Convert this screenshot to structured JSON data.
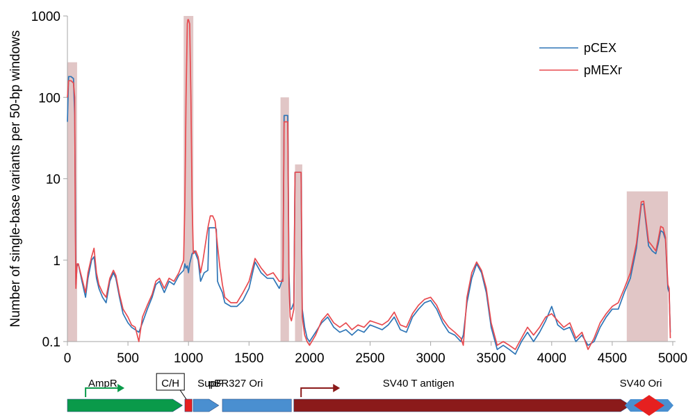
{
  "chart_data": {
    "type": "line",
    "title": "",
    "xlabel": "",
    "ylabel": "Number of single-base variants per 50-bp windows",
    "xlim": [
      0,
      5000
    ],
    "ylim": [
      0.1,
      1000
    ],
    "yscale": "log",
    "grid": false,
    "legend_placement": "top-right",
    "x_ticks": [
      "0",
      "500",
      "1000",
      "1500",
      "2000",
      "2500",
      "3000",
      "3500",
      "4000",
      "4500",
      "5000"
    ],
    "y_ticks": [
      "0.1",
      "1",
      "10",
      "100",
      "1000"
    ],
    "highlight_regions": [
      {
        "start": 0,
        "end": 80,
        "top": 270
      },
      {
        "start": 960,
        "end": 1040,
        "top": 1000
      },
      {
        "start": 1760,
        "end": 1830,
        "top": 100
      },
      {
        "start": 1880,
        "end": 1940,
        "top": 15
      },
      {
        "start": 4620,
        "end": 4960,
        "top": 7
      }
    ],
    "series": [
      {
        "name": "pCEX",
        "color": "#2e75b6",
        "x": [
          0,
          10,
          30,
          50,
          60,
          65,
          70,
          80,
          90,
          120,
          150,
          170,
          200,
          220,
          240,
          260,
          290,
          320,
          350,
          380,
          400,
          430,
          460,
          500,
          530,
          560,
          590,
          620,
          660,
          700,
          730,
          760,
          800,
          840,
          880,
          920,
          960,
          970,
          980,
          990,
          1000,
          1010,
          1030,
          1050,
          1080,
          1100,
          1130,
          1160,
          1170,
          1175,
          1180,
          1200,
          1220,
          1230,
          1240,
          1250,
          1280,
          1300,
          1350,
          1400,
          1450,
          1500,
          1550,
          1600,
          1650,
          1700,
          1750,
          1780,
          1790,
          1800,
          1810,
          1820,
          1830,
          1840,
          1850,
          1870,
          1880,
          1900,
          1920,
          1930,
          1940,
          1960,
          1980,
          2000,
          2050,
          2100,
          2150,
          2200,
          2250,
          2300,
          2350,
          2400,
          2450,
          2500,
          2550,
          2600,
          2650,
          2700,
          2750,
          2800,
          2850,
          2900,
          2950,
          3000,
          3050,
          3100,
          3150,
          3200,
          3250,
          3270,
          3300,
          3340,
          3380,
          3420,
          3460,
          3500,
          3550,
          3600,
          3650,
          3700,
          3750,
          3800,
          3850,
          3900,
          3950,
          4000,
          4050,
          4100,
          4150,
          4200,
          4250,
          4300,
          4350,
          4400,
          4450,
          4500,
          4550,
          4600,
          4650,
          4700,
          4740,
          4760,
          4800,
          4830,
          4860,
          4880,
          4900,
          4920,
          4940,
          4960,
          4970,
          4980
        ],
        "y": [
          50,
          180,
          180,
          170,
          60,
          8,
          0.5,
          0.85,
          0.9,
          0.55,
          0.35,
          0.6,
          1.0,
          1.1,
          0.6,
          0.45,
          0.35,
          0.3,
          0.55,
          0.7,
          0.6,
          0.35,
          0.22,
          0.17,
          0.15,
          0.14,
          0.13,
          0.17,
          0.25,
          0.35,
          0.5,
          0.55,
          0.4,
          0.55,
          0.5,
          0.65,
          0.75,
          0.9,
          0.8,
          0.85,
          0.7,
          0.9,
          1.2,
          1.3,
          1.0,
          0.55,
          0.7,
          0.75,
          2.5,
          2.5,
          2.5,
          2.5,
          2.5,
          2.4,
          0.55,
          0.5,
          0.4,
          0.3,
          0.27,
          0.27,
          0.32,
          0.45,
          0.95,
          0.7,
          0.6,
          0.6,
          0.45,
          0.6,
          60,
          60,
          60,
          60,
          0.7,
          0.25,
          0.25,
          0.3,
          12,
          12,
          12,
          12,
          0.25,
          0.15,
          0.11,
          0.1,
          0.13,
          0.17,
          0.2,
          0.15,
          0.13,
          0.14,
          0.12,
          0.14,
          0.13,
          0.16,
          0.15,
          0.14,
          0.16,
          0.2,
          0.14,
          0.13,
          0.2,
          0.25,
          0.3,
          0.32,
          0.25,
          0.17,
          0.13,
          0.12,
          0.1,
          0.12,
          0.3,
          0.6,
          0.9,
          0.7,
          0.4,
          0.15,
          0.08,
          0.09,
          0.08,
          0.07,
          0.1,
          0.13,
          0.1,
          0.13,
          0.18,
          0.27,
          0.16,
          0.14,
          0.15,
          0.1,
          0.12,
          0.09,
          0.1,
          0.15,
          0.2,
          0.25,
          0.25,
          0.4,
          0.6,
          1.4,
          4.8,
          4.9,
          1.5,
          1.3,
          1.2,
          1.6,
          2.3,
          2.2,
          1.8,
          0.45,
          0.4,
          0.13
        ]
      },
      {
        "name": "pMEXr",
        "color": "#e84a4f",
        "x": [
          0,
          10,
          30,
          50,
          60,
          65,
          70,
          80,
          90,
          120,
          150,
          170,
          200,
          220,
          240,
          260,
          290,
          320,
          350,
          380,
          400,
          430,
          460,
          500,
          530,
          560,
          590,
          620,
          660,
          700,
          730,
          760,
          800,
          840,
          880,
          920,
          960,
          970,
          980,
          990,
          995,
          1000,
          1010,
          1020,
          1030,
          1040,
          1060,
          1080,
          1100,
          1120,
          1160,
          1180,
          1200,
          1220,
          1240,
          1260,
          1270,
          1280,
          1300,
          1350,
          1400,
          1450,
          1500,
          1550,
          1600,
          1650,
          1700,
          1750,
          1780,
          1790,
          1800,
          1810,
          1820,
          1830,
          1840,
          1850,
          1870,
          1880,
          1900,
          1920,
          1930,
          1940,
          1960,
          1980,
          2000,
          2050,
          2100,
          2150,
          2200,
          2250,
          2300,
          2350,
          2400,
          2450,
          2500,
          2550,
          2600,
          2650,
          2700,
          2750,
          2800,
          2850,
          2900,
          2950,
          3000,
          3050,
          3100,
          3150,
          3200,
          3250,
          3270,
          3300,
          3340,
          3380,
          3420,
          3460,
          3500,
          3550,
          3600,
          3650,
          3700,
          3750,
          3800,
          3850,
          3900,
          3950,
          4000,
          4050,
          4100,
          4150,
          4200,
          4250,
          4300,
          4350,
          4400,
          4450,
          4500,
          4550,
          4600,
          4650,
          4700,
          4740,
          4760,
          4800,
          4830,
          4860,
          4880,
          4900,
          4920,
          4940,
          4960,
          4970,
          4980
        ],
        "y": [
          100,
          160,
          160,
          150,
          100,
          3,
          0.45,
          0.9,
          0.9,
          0.6,
          0.4,
          0.7,
          1.1,
          1.4,
          0.7,
          0.5,
          0.4,
          0.35,
          0.6,
          0.75,
          0.65,
          0.38,
          0.25,
          0.2,
          0.16,
          0.15,
          0.1,
          0.2,
          0.28,
          0.38,
          0.55,
          0.6,
          0.45,
          0.6,
          0.55,
          0.7,
          1.0,
          5,
          100,
          800,
          900,
          900,
          800,
          100,
          5,
          1.2,
          1.3,
          1.1,
          0.7,
          1.0,
          2.5,
          3.5,
          3.5,
          3.0,
          1.5,
          0.8,
          0.65,
          0.5,
          0.35,
          0.3,
          0.3,
          0.4,
          0.55,
          1.05,
          0.8,
          0.65,
          0.7,
          0.55,
          0.55,
          50,
          50,
          50,
          50,
          0.5,
          0.2,
          0.18,
          0.25,
          12,
          12,
          12,
          12,
          0.2,
          0.12,
          0.1,
          0.09,
          0.12,
          0.18,
          0.22,
          0.17,
          0.15,
          0.17,
          0.14,
          0.16,
          0.15,
          0.18,
          0.17,
          0.16,
          0.18,
          0.23,
          0.16,
          0.15,
          0.22,
          0.28,
          0.33,
          0.35,
          0.28,
          0.19,
          0.15,
          0.13,
          0.11,
          0.09,
          0.35,
          0.7,
          0.95,
          0.75,
          0.45,
          0.17,
          0.09,
          0.1,
          0.09,
          0.08,
          0.11,
          0.15,
          0.12,
          0.15,
          0.2,
          0.22,
          0.18,
          0.15,
          0.17,
          0.11,
          0.13,
          0.08,
          0.11,
          0.17,
          0.22,
          0.27,
          0.3,
          0.45,
          0.7,
          1.6,
          5.2,
          5.3,
          1.7,
          1.5,
          1.3,
          1.8,
          2.6,
          2.5,
          1.9,
          0.5,
          0.45,
          0.11
        ]
      }
    ],
    "map_features": [
      {
        "label": "AmpR",
        "start": 0,
        "end": 950,
        "color": "#0a9a4a",
        "shape": "arrow",
        "promoter": {
          "pos": 150,
          "color": "#0a9a4a"
        }
      },
      {
        "label": "C/H",
        "start": 970,
        "end": 1030,
        "color": "#e62020",
        "shape": "box",
        "boxed_label": true,
        "label_color": "#8b1a1a"
      },
      {
        "label": "SupF",
        "start": 1040,
        "end": 1250,
        "color": "#4a8fd0",
        "shape": "arrow"
      },
      {
        "label": "pBR327 Ori",
        "start": 1280,
        "end": 1850,
        "color": "#4a8fd0",
        "shape": "box"
      },
      {
        "label": "SV40 T antigen",
        "start": 1870,
        "end": 4650,
        "color": "#8b1a1a",
        "shape": "arrow",
        "promoter": {
          "pos": 1930,
          "color": "#8b1a1a"
        }
      },
      {
        "label": "SV40 Ori",
        "start": 4650,
        "end": 4960,
        "color": "#e62020",
        "shape": "diamond"
      }
    ]
  }
}
